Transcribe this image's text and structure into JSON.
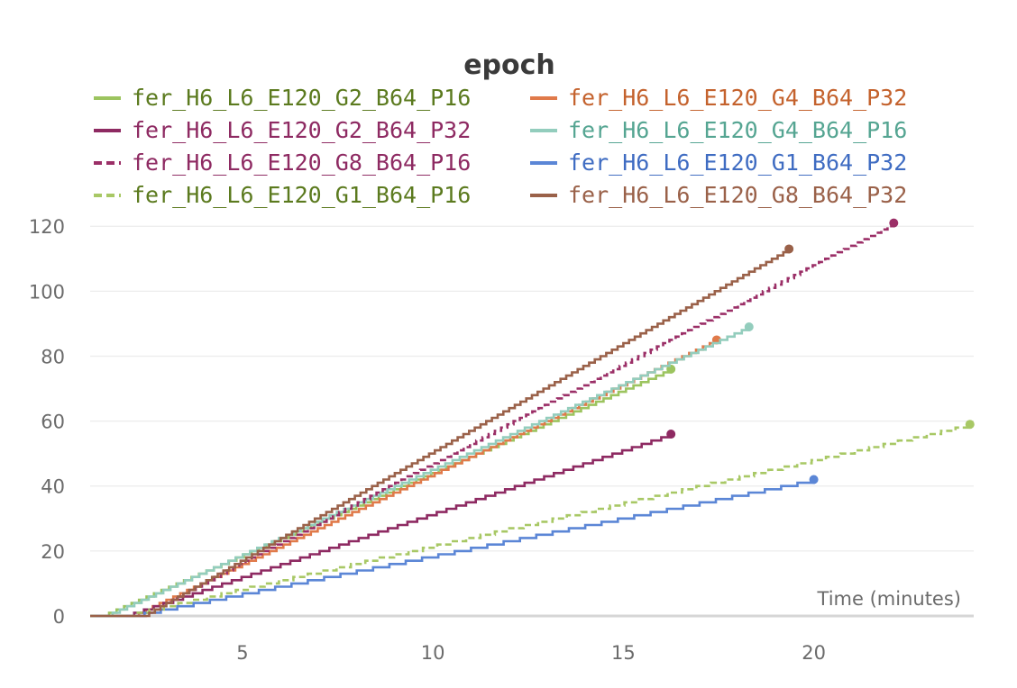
{
  "chart_data": {
    "type": "line",
    "title": "epoch",
    "xlabel": "Time (minutes)",
    "ylabel": "",
    "xlim": [
      1,
      24.2
    ],
    "ylim": [
      0,
      122
    ],
    "x_ticks": [
      5,
      10,
      15,
      20
    ],
    "y_ticks": [
      0,
      20,
      40,
      60,
      80,
      100,
      120
    ],
    "grid": "horizontal",
    "legend_position": "top",
    "series": [
      {
        "name": "fer_H6_L6_E120_G2_B64_P16",
        "color": "#9cc45f",
        "label_color": "#5b7a1e",
        "dash": "solid",
        "x_start": 1.3,
        "x_end": 16.25,
        "y_end": 76
      },
      {
        "name": "fer_H6_L6_E120_G4_B64_P32",
        "color": "#e07a4a",
        "label_color": "#c4622d",
        "dash": "solid",
        "x_start": 2.1,
        "x_end": 17.45,
        "y_end": 85
      },
      {
        "name": "fer_H6_L6_E120_G2_B64_P32",
        "color": "#8e2a62",
        "label_color": "#8e2a62",
        "dash": "solid",
        "x_start": 1.9,
        "x_end": 16.25,
        "y_end": 56
      },
      {
        "name": "fer_H6_L6_E120_G4_B64_P16",
        "color": "#93cdbd",
        "label_color": "#55a592",
        "dash": "solid",
        "x_start": 1.4,
        "x_end": 18.3,
        "y_end": 89
      },
      {
        "name": "fer_H6_L6_E120_G8_B64_P16",
        "color": "#9b2f67",
        "label_color": "#8e2a62",
        "dash": "dashed",
        "x_start": 2.3,
        "x_end": 22.1,
        "y_end": 121
      },
      {
        "name": "fer_H6_L6_E120_G1_B64_P32",
        "color": "#5b86d6",
        "label_color": "#3f6cc2",
        "dash": "solid",
        "x_start": 2.0,
        "x_end": 20.0,
        "y_end": 42
      },
      {
        "name": "fer_H6_L6_E120_G1_B64_P16",
        "color": "#a8c865",
        "label_color": "#5b7a1e",
        "dash": "dashed",
        "x_start": 1.8,
        "x_end": 24.1,
        "y_end": 59
      },
      {
        "name": "fer_H6_L6_E120_G8_B64_P32",
        "color": "#9a6149",
        "label_color": "#9a6149",
        "dash": "solid",
        "x_start": 2.4,
        "x_end": 19.35,
        "y_end": 113
      }
    ]
  }
}
